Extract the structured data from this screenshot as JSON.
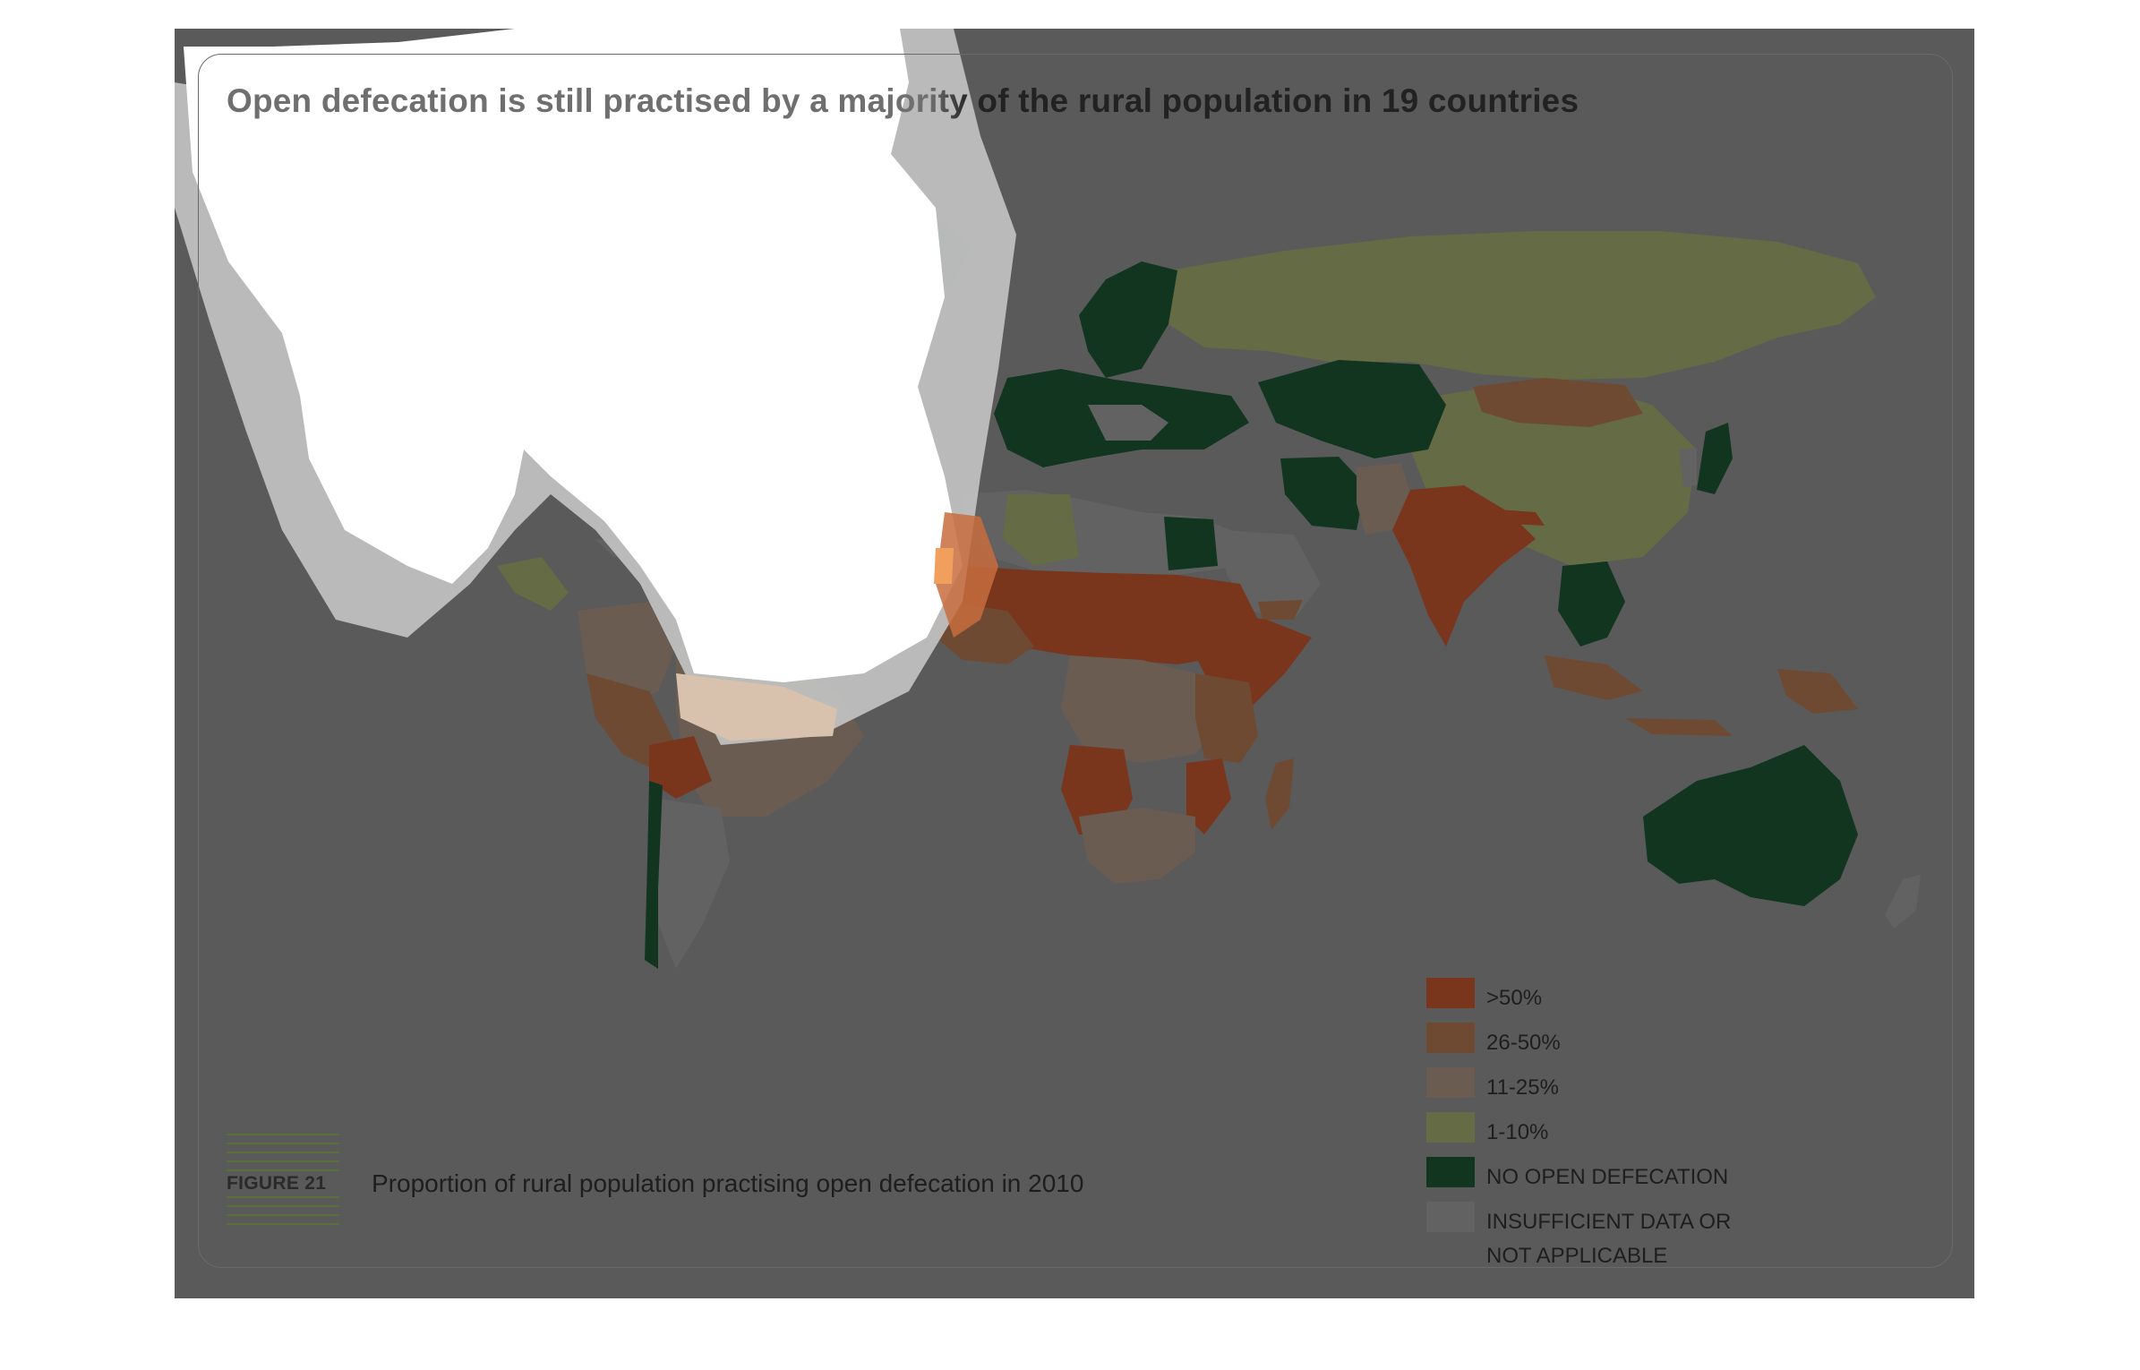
{
  "map": {
    "title": "Open defecation is still practised by a majority of the rural population in 19 countries",
    "caption": "Proportion of rural population practising open defecation in 2010",
    "figure_number": "FIGURE 21",
    "background": "#5a5a5a",
    "ocean_color": "#5a5a5a",
    "insufficient_color": "#6b6b6b",
    "legend": [
      {
        "label": ">50%",
        "color": "#7a361c"
      },
      {
        "label": "26-50%",
        "color": "#6f4a33"
      },
      {
        "label": "11-25%",
        "color": "#6b5c52"
      },
      {
        "label": "1-10%",
        "color": "#656b45"
      },
      {
        "label": "NO OPEN DEFECATION",
        "color": "#123520"
      },
      {
        "label": "INSUFFICIENT DATA OR NOT APPLICABLE",
        "color": "#626262"
      }
    ]
  }
}
